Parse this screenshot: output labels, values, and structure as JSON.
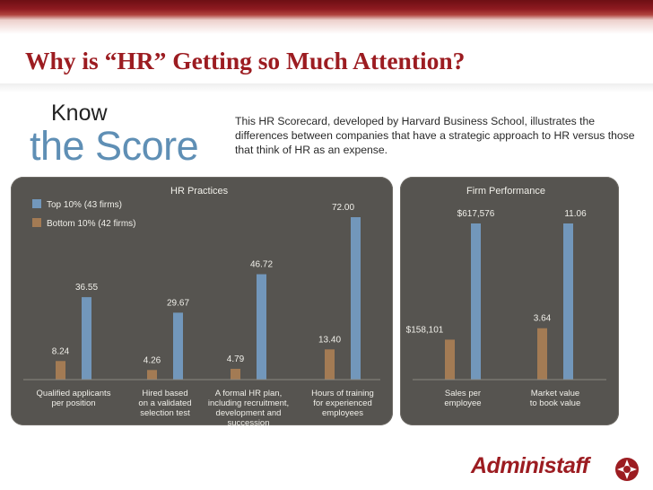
{
  "slide": {
    "title": "Why is “HR” Getting so Much Attention?",
    "know": "Know",
    "score": "the Score",
    "intro": "This HR Scorecard, developed by Harvard Business School, illustrates the differences between companies that have a strategic approach to HR versus those that think of HR as an expense.",
    "logo": "Administaff",
    "colors": {
      "title": "#9c1c21",
      "top": "#7297bb",
      "bottom": "#a37b54",
      "panel": "#565450",
      "score": "#5f8fb5"
    }
  },
  "chart_data": [
    {
      "type": "bar",
      "title": "HR Practices",
      "legend": [
        "Top 10% (43 firms)",
        "Bottom 10% (42 firms)"
      ],
      "legend_position": "top-left",
      "categories": [
        [
          "Qualified applicants",
          "per position"
        ],
        [
          "Hired based",
          "on a validated",
          "selection test"
        ],
        [
          "A formal HR plan,",
          "including recruitment,",
          "development and",
          "succession"
        ],
        [
          "Hours of training",
          "for experienced",
          "employees"
        ]
      ],
      "series": [
        {
          "name": "Bottom 10% (42 firms)",
          "values": [
            8.24,
            4.26,
            4.79,
            13.4
          ],
          "labels": [
            "8.24",
            "4.26",
            "4.79",
            "13.40"
          ]
        },
        {
          "name": "Top 10% (43 firms)",
          "values": [
            36.55,
            29.67,
            46.72,
            72.0
          ],
          "labels": [
            "36.55",
            "29.67",
            "46.72",
            "72.00"
          ]
        }
      ],
      "ylim": [
        0,
        72
      ]
    },
    {
      "type": "bar",
      "title": "Firm Performance",
      "categories": [
        [
          "Sales per",
          "employee"
        ],
        [
          "Market value",
          "to book value"
        ]
      ],
      "series": [
        {
          "name": "Bottom 10% (42 firms)",
          "values": [
            158101,
            3.64
          ],
          "labels": [
            "$158,101",
            "3.64"
          ]
        },
        {
          "name": "Top 10% (43 firms)",
          "values": [
            617576,
            11.06
          ],
          "labels": [
            "$617,576",
            "11.06"
          ]
        }
      ],
      "independent_scales": true,
      "ylim_per_category": [
        [
          0,
          617576
        ],
        [
          0,
          11.06
        ]
      ]
    }
  ]
}
